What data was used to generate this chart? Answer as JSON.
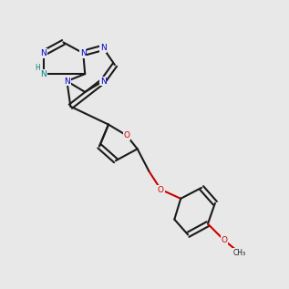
{
  "bg_color": "#e8e8e8",
  "bond_color": "#1a1a1a",
  "nitrogen_color": "#0000cc",
  "oxygen_color": "#cc0000",
  "h_color": "#008080",
  "lw": 1.5,
  "dbo": 0.09,
  "fs": 6.5
}
